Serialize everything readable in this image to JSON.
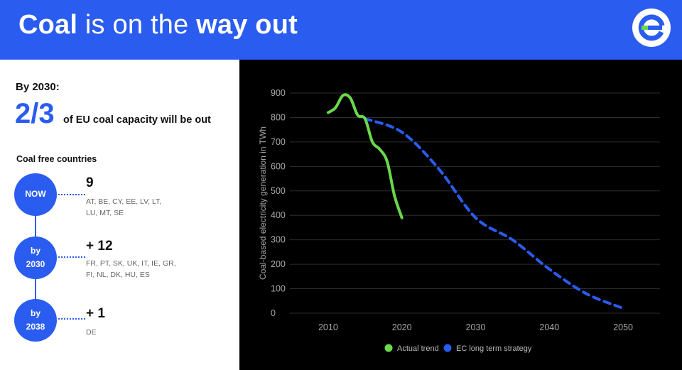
{
  "header": {
    "title_bold1": "Coal",
    "title_mid": " is on the ",
    "title_bold2": "way out",
    "logo": "e-logo-icon",
    "colors": {
      "header_bg": "#2a5cf0",
      "logo_green": "#6ad94a"
    }
  },
  "summary": {
    "by_label": "By 2030:",
    "fraction": "2/3",
    "description": "of EU coal capacity will be out"
  },
  "coal_free": {
    "title": "Coal free countries",
    "steps": [
      {
        "label_line1": "NOW",
        "label_line2": "",
        "count": "9",
        "codes_line1": "AT, BE, CY, EE, LV, LT,",
        "codes_line2": "LU, MT, SE"
      },
      {
        "label_line1": "by",
        "label_line2": "2030",
        "count": "+ 12",
        "codes_line1": "FR, PT, SK, UK, IT, IE, GR,",
        "codes_line2": "FI, NL, DK, HU, ES"
      },
      {
        "label_line1": "by",
        "label_line2": "2038",
        "count": "+ 1",
        "codes_line1": "DE",
        "codes_line2": ""
      }
    ]
  },
  "chart_data": {
    "type": "line",
    "title": "",
    "xlabel": "",
    "ylabel": "Coal-based electricity generation in TWh",
    "xlim": [
      2005,
      2055
    ],
    "ylim": [
      0,
      900
    ],
    "x_ticks": [
      2010,
      2020,
      2030,
      2040,
      2050
    ],
    "y_ticks": [
      0,
      100,
      200,
      300,
      400,
      500,
      600,
      700,
      800,
      900
    ],
    "grid": "horizontal",
    "legend_position": "bottom",
    "series": [
      {
        "name": "Actual trend",
        "color": "#6ad94a",
        "style": "solid",
        "points": [
          [
            2010,
            820
          ],
          [
            2011,
            840
          ],
          [
            2012,
            890
          ],
          [
            2013,
            880
          ],
          [
            2014,
            810
          ],
          [
            2015,
            795
          ],
          [
            2016,
            700
          ],
          [
            2017,
            670
          ],
          [
            2018,
            620
          ],
          [
            2019,
            480
          ],
          [
            2020,
            390
          ]
        ]
      },
      {
        "name": "EC long term strategy",
        "color": "#2a5cf0",
        "style": "dashed",
        "points": [
          [
            2015,
            795
          ],
          [
            2020,
            740
          ],
          [
            2025,
            590
          ],
          [
            2030,
            390
          ],
          [
            2035,
            300
          ],
          [
            2040,
            180
          ],
          [
            2045,
            80
          ],
          [
            2050,
            20
          ]
        ]
      }
    ]
  }
}
